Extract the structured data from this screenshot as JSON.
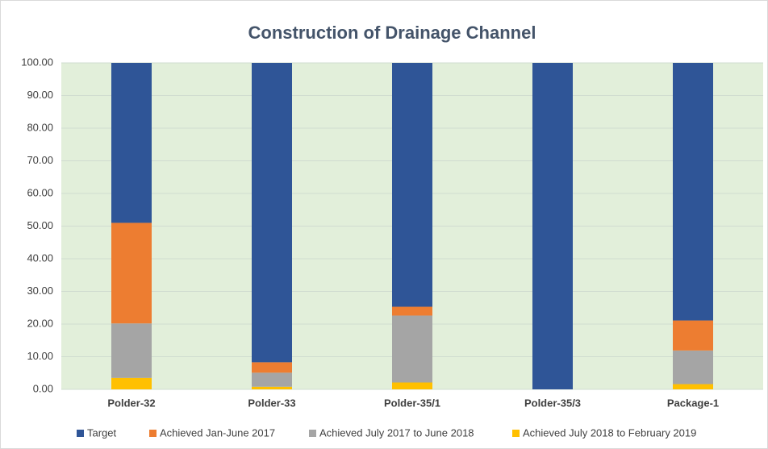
{
  "chart_data": {
    "type": "stacked_bar",
    "title": "Construction of Drainage Channel",
    "categories": [
      "Polder-32",
      "Polder-33",
      "Polder-35/1",
      "Polder-35/3",
      "Package-1"
    ],
    "series": [
      {
        "name": "Target",
        "color": "#2f5597",
        "values": [
          49,
          91.7,
          74.7,
          100,
          78.9
        ]
      },
      {
        "name": "Achieved Jan-June 2017",
        "color": "#ed7d31",
        "values": [
          30.8,
          3.2,
          2.7,
          0,
          9.2
        ]
      },
      {
        "name": "Achieved July 2017 to June 2018",
        "color": "#a5a5a5",
        "values": [
          16.7,
          4.3,
          20.5,
          0,
          10.3
        ]
      },
      {
        "name": "Achieved July 2018 to February 2019",
        "color": "#ffc000",
        "values": [
          3.5,
          0.8,
          2.1,
          0,
          1.6
        ]
      }
    ],
    "ylim": [
      0,
      100
    ],
    "yticks": [
      {
        "value": 0,
        "label": "0.00"
      },
      {
        "value": 10,
        "label": "10.00"
      },
      {
        "value": 20,
        "label": "20.00"
      },
      {
        "value": 30,
        "label": "30.00"
      },
      {
        "value": 40,
        "label": "40.00"
      },
      {
        "value": 50,
        "label": "50.00"
      },
      {
        "value": 60,
        "label": "60.00"
      },
      {
        "value": 70,
        "label": "70.00"
      },
      {
        "value": 80,
        "label": "80.00"
      },
      {
        "value": 90,
        "label": "90.00"
      },
      {
        "value": 100,
        "label": "100.00"
      }
    ],
    "grid": true,
    "legend": "bottom",
    "plot_background": "#e2efda"
  }
}
